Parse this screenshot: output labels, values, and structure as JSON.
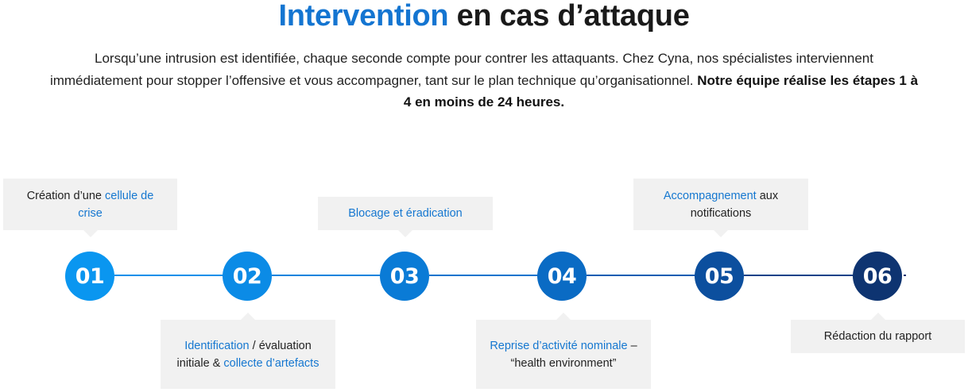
{
  "title": {
    "accent": "Intervention",
    "rest": " en cas d’attaque"
  },
  "intro": {
    "text": "Lorsqu’une intrusion est identifiée, chaque seconde compte pour contrer les attaquants. Chez Cyna, nos spécialistes interviennent immédiatement pour stopper l’offensive et vous accompagner, tant sur le plan technique qu’organisationnel. ",
    "bold": "Notre équipe réalise les étapes 1 à 4 en moins de 24 heures."
  },
  "colors": {
    "accent": "#1475d1",
    "step1": "#0a96f0",
    "step2": "#0b8be6",
    "step3": "#0a7bd6",
    "step4": "#0a6bc4",
    "step5": "#0c4f9e",
    "step6": "#0e3471",
    "box": "#f1f1f1"
  },
  "steps": [
    {
      "number": "01",
      "pre": "Création d’une ",
      "hl": "cellule de crise",
      "post": ""
    },
    {
      "number": "02",
      "hl": "Identification",
      "mid": " / évaluation initiale & ",
      "hl2": "collecte d’artefacts"
    },
    {
      "number": "03",
      "pre": "",
      "hl": "Blocage et éradication",
      "post": ""
    },
    {
      "number": "04",
      "hl": "Reprise d’activité nominale",
      "post": " – “health environment”"
    },
    {
      "number": "05",
      "pre": "",
      "hl": "Accompagnement",
      "post": " aux notifications"
    },
    {
      "number": "06",
      "text": "Rédaction du rapport"
    }
  ]
}
